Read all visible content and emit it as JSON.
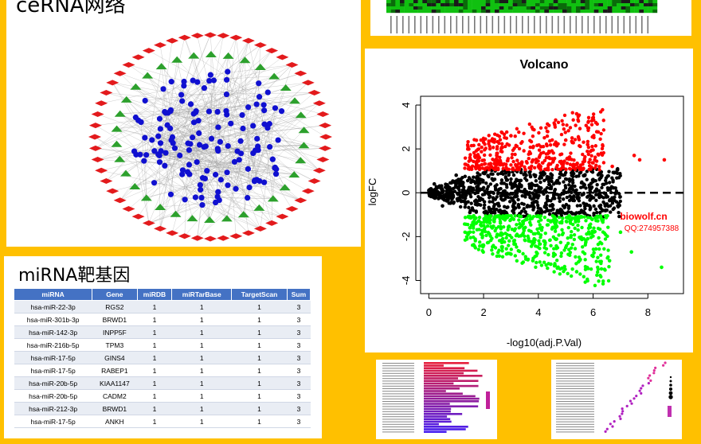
{
  "network_panel": {
    "title": "ceRNA网络"
  },
  "volcano_panel": {
    "title": "Volcano",
    "xlabel": "-log10(adj.P.Val)",
    "ylabel": "logFC",
    "x_ticks": [
      "0",
      "2",
      "4",
      "6",
      "8"
    ],
    "y_ticks": [
      "4",
      "2",
      "0",
      "-2",
      "-4"
    ],
    "watermark_line1": "biowolf.cn",
    "watermark_line2": "QQ:274957388",
    "colors": {
      "up": "#ff0000",
      "down": "#00ff00",
      "ns": "#000000"
    }
  },
  "chart_data": {
    "type": "scatter",
    "title": "Volcano",
    "xlabel": "-log10(adj.P.Val)",
    "ylabel": "logFC",
    "xlim": [
      -0.3,
      9.3
    ],
    "ylim": [
      -4.6,
      4.4
    ],
    "threshold_line_y": 0,
    "series": [
      {
        "name": "",
        "color": "#ff0000",
        "points": [
          [
            1.5,
            1.6
          ],
          [
            2,
            2.3
          ],
          [
            2.5,
            1.8
          ],
          [
            3,
            2.6
          ],
          [
            3.4,
            1.4
          ],
          [
            3.8,
            2.9
          ],
          [
            4.1,
            2.1
          ],
          [
            4.6,
            3.1
          ],
          [
            5,
            2.4
          ],
          [
            5.4,
            3.6
          ],
          [
            5.8,
            2.2
          ],
          [
            6.1,
            3.2
          ],
          [
            6.3,
            1.8
          ],
          [
            6.7,
            1.2
          ],
          [
            7.5,
            1.7
          ],
          [
            7.7,
            1.5
          ],
          [
            8.6,
            1.5
          ]
        ]
      },
      {
        "name": "",
        "color": "#00ff00",
        "points": [
          [
            1.5,
            -1.6
          ],
          [
            2,
            -2.4
          ],
          [
            2.5,
            -1.9
          ],
          [
            3,
            -2.8
          ],
          [
            3.4,
            -1.5
          ],
          [
            3.8,
            -3.1
          ],
          [
            4.2,
            -2.2
          ],
          [
            4.6,
            -3.3
          ],
          [
            5,
            -2.5
          ],
          [
            5.4,
            -3.6
          ],
          [
            5.8,
            -2.1
          ],
          [
            6,
            -2.9
          ],
          [
            6.6,
            -3.1
          ],
          [
            7,
            -1.8
          ],
          [
            7.4,
            -2.7
          ],
          [
            8.5,
            -3.4
          ]
        ]
      },
      {
        "name": "",
        "color": "#000000",
        "points": [
          [
            0.2,
            0.4
          ],
          [
            0.5,
            -0.6
          ],
          [
            1,
            0.8
          ],
          [
            1.5,
            -0.9
          ],
          [
            2,
            0.9
          ],
          [
            2.6,
            -0.8
          ],
          [
            3.2,
            0.6
          ],
          [
            4,
            -0.7
          ],
          [
            4.5,
            0.8
          ],
          [
            5.2,
            -0.9
          ],
          [
            6,
            0.6
          ],
          [
            6.5,
            -0.8
          ],
          [
            6.9,
            -0.6
          ]
        ]
      }
    ]
  },
  "mirna_panel": {
    "title": "miRNA靶基因",
    "headers": [
      "miRNA",
      "Gene",
      "miRDB",
      "miRTarBase",
      "TargetScan",
      "Sum"
    ],
    "rows": [
      [
        "hsa-miR-22-3p",
        "RGS2",
        "1",
        "1",
        "1",
        "3"
      ],
      [
        "hsa-miR-301b-3p",
        "BRWD1",
        "1",
        "1",
        "1",
        "3"
      ],
      [
        "hsa-miR-142-3p",
        "INPP5F",
        "1",
        "1",
        "1",
        "3"
      ],
      [
        "hsa-miR-216b-5p",
        "TPM3",
        "1",
        "1",
        "1",
        "3"
      ],
      [
        "hsa-miR-17-5p",
        "GINS4",
        "1",
        "1",
        "1",
        "3"
      ],
      [
        "hsa-miR-17-5p",
        "RABEP1",
        "1",
        "1",
        "1",
        "3"
      ],
      [
        "hsa-miR-20b-5p",
        "KIAA1147",
        "1",
        "1",
        "1",
        "3"
      ],
      [
        "hsa-miR-20b-5p",
        "CADM2",
        "1",
        "1",
        "1",
        "3"
      ],
      [
        "hsa-miR-212-3p",
        "BRWD1",
        "1",
        "1",
        "1",
        "3"
      ],
      [
        "hsa-miR-17-5p",
        "ANKH",
        "1",
        "1",
        "1",
        "3"
      ]
    ]
  }
}
